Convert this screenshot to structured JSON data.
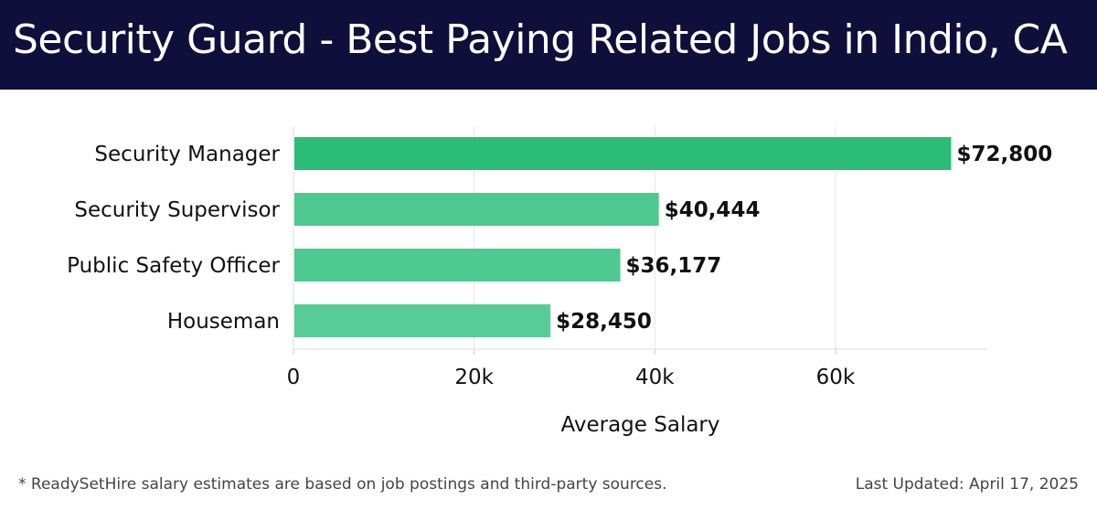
{
  "header": {
    "title": "Security Guard - Best Paying Related Jobs in Indio, CA",
    "background": "#0e0f3a"
  },
  "chart_data": {
    "type": "bar",
    "orientation": "horizontal",
    "categories": [
      "Security Manager",
      "Security Supervisor",
      "Public Safety Officer",
      "Houseman"
    ],
    "values": [
      72800,
      40444,
      36177,
      28450
    ],
    "value_labels": [
      "$72,800",
      "$40,444",
      "$36,177",
      "$28,450"
    ],
    "xlabel": "Average Salary",
    "xlim": [
      0,
      76800
    ],
    "xticks": [
      0,
      20000,
      40000,
      60000
    ],
    "xtick_labels": [
      "0",
      "20k",
      "40k",
      "60k"
    ],
    "grid": true,
    "colors": [
      "#2bbd77",
      "#4ec98f",
      "#4ec98f",
      "#57cc96"
    ]
  },
  "footer": {
    "note": "* ReadySetHire salary estimates are based on job postings and third-party sources.",
    "updated": "Last Updated: April 17, 2025"
  }
}
